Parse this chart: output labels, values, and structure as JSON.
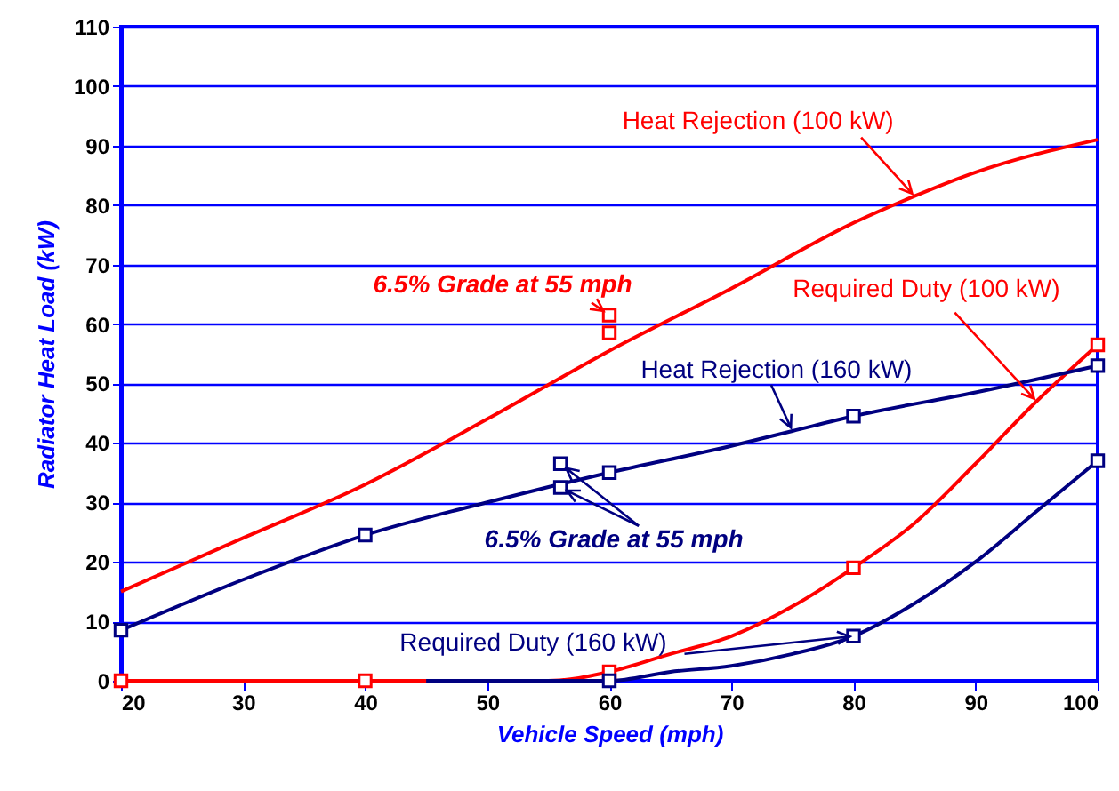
{
  "chart_data": {
    "type": "line",
    "xlabel": "Vehicle Speed (mph)",
    "ylabel": "Radiator Heat Load (kW)",
    "xlim": [
      20,
      100
    ],
    "xticks": [
      20,
      30,
      40,
      50,
      60,
      70,
      80,
      90,
      100
    ],
    "ylim": [
      0,
      110
    ],
    "yticks": [
      0,
      10,
      20,
      30,
      40,
      50,
      60,
      70,
      80,
      90,
      100,
      110
    ],
    "grid": "y",
    "line_style": "solid",
    "series": [
      {
        "name": "Heat Rejection (100 kW)",
        "marker": "none",
        "color": "#ff0000",
        "x": [
          20,
          30,
          40,
          50,
          60,
          70,
          80,
          85,
          90,
          100
        ],
        "values": [
          15,
          24,
          33,
          44,
          55.5,
          66,
          77,
          81.5,
          85.5,
          91
        ]
      },
      {
        "name": "Required Duty (100 kW)",
        "marker": "none",
        "color": "#ff0000",
        "x": [
          20,
          40,
          50,
          55,
          60,
          65,
          70,
          75,
          80,
          85,
          90,
          95,
          100
        ],
        "values": [
          0,
          0,
          0,
          0,
          1.5,
          4.5,
          7.5,
          12.5,
          19,
          26.5,
          36.5,
          47,
          56.5
        ]
      },
      {
        "name": "Heat Rejection (160 kW)",
        "marker": "none",
        "color": "#000080",
        "x": [
          20,
          30,
          40,
          50,
          60,
          70,
          75,
          80,
          90,
          100
        ],
        "values": [
          8.5,
          17,
          24.5,
          30,
          35,
          39.5,
          42,
          44.5,
          48.5,
          53
        ]
      },
      {
        "name": "Required Duty (160 kW)",
        "marker": "none",
        "color": "#000080",
        "x": [
          45,
          50,
          55,
          60,
          65,
          70,
          75,
          80,
          85,
          90,
          95,
          100
        ],
        "values": [
          0,
          0,
          0,
          0,
          1.5,
          2.5,
          4.5,
          7.5,
          13,
          20,
          28.5,
          37
        ]
      },
      {
        "type": "scatter",
        "marker": "square",
        "color": "#ff0000",
        "x": [
          60,
          60
        ],
        "values": [
          61.5,
          58.5
        ]
      },
      {
        "type": "scatter",
        "marker": "square",
        "color": "#000080",
        "x": [
          56,
          56
        ],
        "values": [
          36.5,
          32.5
        ]
      },
      {
        "type": "scatter",
        "marker": "square",
        "color": "#ff0000",
        "x": [
          20,
          40,
          60,
          80,
          100
        ],
        "values": [
          0,
          0,
          1.5,
          19,
          56.5
        ]
      },
      {
        "type": "scatter",
        "marker": "square",
        "color": "#000080",
        "x": [
          20,
          40,
          60,
          80,
          100
        ],
        "values": [
          8.5,
          24.5,
          35,
          44.5,
          53
        ]
      },
      {
        "type": "scatter",
        "marker": "square",
        "color": "#000080",
        "x": [
          60,
          80,
          100
        ],
        "values": [
          0,
          7.5,
          37
        ]
      }
    ],
    "annotations": [
      {
        "text": "6.5% Grade at 55 mph",
        "x": 60,
        "y": 61.5
      },
      {
        "text": "6.5% Grade at 55 mph",
        "x": 56,
        "y": 36.5
      }
    ]
  }
}
